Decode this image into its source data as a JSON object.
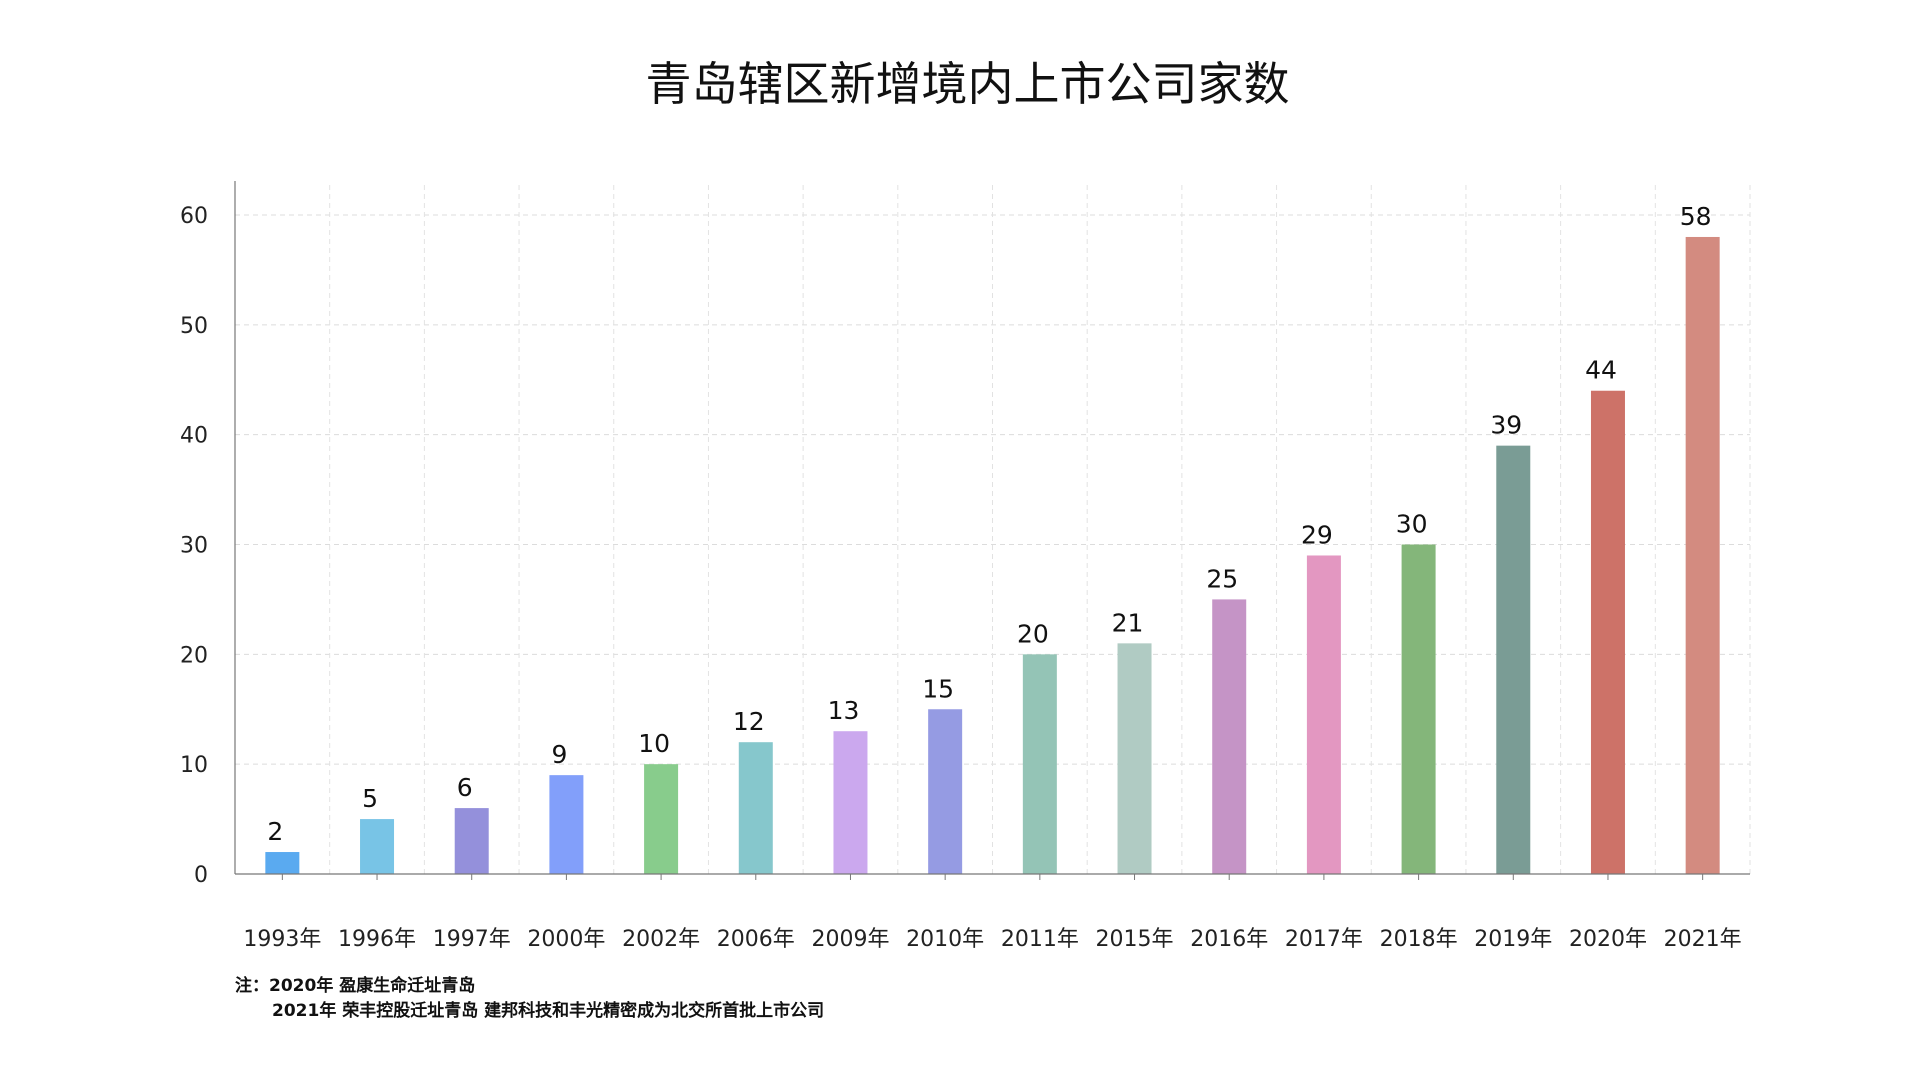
{
  "chart_data": {
    "type": "bar",
    "title": "青岛辖区新增境内上市公司家数",
    "categories": [
      "1993年",
      "1996年",
      "1997年",
      "2000年",
      "2002年",
      "2006年",
      "2009年",
      "2010年",
      "2011年",
      "2015年",
      "2016年",
      "2017年",
      "2018年",
      "2019年",
      "2020年",
      "2021年"
    ],
    "values": [
      2,
      5,
      6,
      9,
      10,
      12,
      13,
      15,
      20,
      21,
      25,
      29,
      30,
      39,
      44,
      58
    ],
    "colors": [
      "#5aaaf0",
      "#78c4e6",
      "#9490db",
      "#829ffa",
      "#88cc8c",
      "#86c7cc",
      "#cba8ee",
      "#959be3",
      "#94c4b6",
      "#b0cbc3",
      "#c594c6",
      "#e397c1",
      "#84b67a",
      "#7a9c95",
      "#cd7268",
      "#d38b80"
    ],
    "ylim": [
      0,
      60
    ],
    "yticks": [
      0,
      10,
      20,
      30,
      40,
      50,
      60
    ],
    "grid": true,
    "xlabel": "",
    "ylabel": ""
  },
  "notes": {
    "line1": "注：2020年 盈康生命迁址青岛",
    "line2": "2021年  荣丰控股迁址青岛 建邦科技和丰光精密成为北交所首批上市公司"
  }
}
